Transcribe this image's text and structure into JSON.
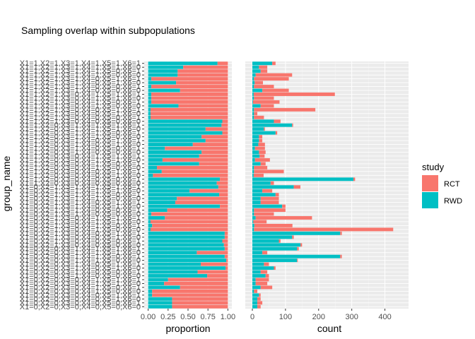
{
  "chart_data": {
    "type": "bar",
    "title": "Sampling overlap within subpopulations",
    "ylabel": "group_name",
    "legend": {
      "title": "study",
      "placement": "right",
      "entries": [
        {
          "name": "RCT",
          "color": "#F8766D"
        },
        {
          "name": "RWD",
          "color": "#00BFC4"
        }
      ]
    },
    "categories": [
      "X1=1,X2=1,X3=1,X4=1,X5=1,X6=1",
      "X1=1,X2=1,X3=1,X4=1,X5=1,X6=0",
      "X1=1,X2=1,X3=1,X4=1,X5=0,X6=1",
      "X1=1,X2=1,X3=1,X4=1,X5=0,X6=0",
      "X1=1,X2=1,X3=1,X4=0,X5=1,X6=1",
      "X1=1,X2=1,X3=1,X4=0,X5=1,X6=0",
      "X1=1,X2=1,X3=1,X4=0,X5=0,X6=1",
      "X1=1,X2=1,X3=1,X4=0,X5=0,X6=0",
      "X1=1,X2=1,X3=0,X4=1,X5=1,X6=1",
      "X1=1,X2=1,X3=0,X4=1,X5=1,X6=0",
      "X1=1,X2=1,X3=0,X4=1,X5=0,X6=1",
      "X1=1,X2=1,X3=0,X4=1,X5=0,X6=0",
      "X1=1,X2=1,X3=0,X4=0,X5=1,X6=1",
      "X1=1,X2=1,X3=0,X4=0,X5=1,X6=0",
      "X1=1,X2=1,X3=0,X4=0,X5=0,X6=1",
      "X1=1,X2=1,X3=0,X4=0,X5=0,X6=0",
      "X1=1,X2=0,X3=1,X4=1,X5=1,X6=1",
      "X1=1,X2=0,X3=1,X4=1,X5=1,X6=0",
      "X1=1,X2=0,X3=1,X4=1,X5=0,X6=1",
      "X1=1,X2=0,X3=1,X4=1,X5=0,X6=0",
      "X1=1,X2=0,X3=1,X4=0,X5=1,X6=1",
      "X1=1,X2=0,X3=1,X4=0,X5=1,X6=0",
      "X1=1,X2=0,X3=1,X4=0,X5=0,X6=1",
      "X1=1,X2=0,X3=1,X4=0,X5=0,X6=0",
      "X1=1,X2=0,X3=0,X4=1,X5=1,X6=1",
      "X1=1,X2=0,X3=0,X4=1,X5=1,X6=0",
      "X1=1,X2=0,X3=0,X4=1,X5=0,X6=1",
      "X1=1,X2=0,X3=0,X4=1,X5=0,X6=0",
      "X1=1,X2=0,X3=0,X4=0,X5=1,X6=1",
      "X1=1,X2=0,X3=0,X4=0,X5=1,X6=0",
      "X1=1,X2=0,X3=0,X4=0,X5=0,X6=1",
      "X1=1,X2=0,X3=0,X4=0,X5=0,X6=0",
      "X1=0,X2=1,X3=1,X4=1,X5=1,X6=1",
      "X1=0,X2=1,X3=1,X4=1,X5=1,X6=0",
      "X1=0,X2=1,X3=1,X4=1,X5=0,X6=1",
      "X1=0,X2=1,X3=1,X4=1,X5=0,X6=0",
      "X1=0,X2=1,X3=1,X4=0,X5=1,X6=1",
      "X1=0,X2=1,X3=1,X4=0,X5=1,X6=0",
      "X1=0,X2=1,X3=1,X4=0,X5=0,X6=1",
      "X1=0,X2=1,X3=1,X4=0,X5=0,X6=0",
      "X1=0,X2=1,X3=0,X4=1,X5=1,X6=1",
      "X1=0,X2=1,X3=0,X4=1,X5=1,X6=0",
      "X1=0,X2=1,X3=0,X4=1,X5=0,X6=1",
      "X1=0,X2=1,X3=0,X4=1,X5=0,X6=0",
      "X1=0,X2=1,X3=0,X4=0,X5=1,X6=1",
      "X1=0,X2=1,X3=0,X4=0,X5=1,X6=0",
      "X1=0,X2=1,X3=0,X4=0,X5=0,X6=1",
      "X1=0,X2=1,X3=0,X4=0,X5=0,X6=0",
      "X1=0,X2=0,X3=1,X4=1,X5=1,X6=1",
      "X1=0,X2=0,X3=1,X4=1,X5=1,X6=0",
      "X1=0,X2=0,X3=1,X4=1,X5=0,X6=1",
      "X1=0,X2=0,X3=1,X4=1,X5=0,X6=0",
      "X1=0,X2=0,X3=1,X4=0,X5=1,X6=1",
      "X1=0,X2=0,X3=1,X4=0,X5=1,X6=0",
      "X1=0,X2=0,X3=1,X4=0,X5=0,X6=1",
      "X1=0,X2=0,X3=1,X4=0,X5=0,X6=0",
      "X1=0,X2=0,X3=0,X4=1,X5=1,X6=1",
      "X1=0,X2=0,X3=0,X4=1,X5=1,X6=0",
      "X1=0,X2=0,X3=0,X4=1,X5=0,X6=1",
      "X1=0,X2=0,X3=0,X4=1,X5=0,X6=0",
      "X1=0,X2=0,X3=0,X4=0,X5=1,X6=1",
      "X1=0,X2=0,X3=0,X4=0,X5=1,X6=0",
      "X1=0,X2=0,X3=0,X4=0,X5=0,X6=1",
      "X1=0,X2=0,X3=0,X4=0,X5=0,X6=0"
    ],
    "panels": [
      {
        "xlabel": "proportion",
        "xlim": [
          0,
          1.0
        ],
        "xticks": [
          "0.00",
          "0.25",
          "0.50",
          "0.75",
          "1.00"
        ],
        "xtick_values": [
          0,
          0.25,
          0.5,
          0.75,
          1.0
        ],
        "stacked": "fill",
        "series": [
          {
            "name": "RWD",
            "values": [
              0.87,
              0.44,
              0.37,
              0.37,
              0.04,
              0.35,
              0.04,
              0.4,
              0.04,
              0.04,
              0.04,
              0.38,
              0.03,
              0.03,
              0.03,
              0.93,
              0.92,
              0.72,
              0.93,
              0.67,
              0.72,
              0.56,
              0.21,
              0.67,
              0.64,
              0.18,
              0.64,
              0.11,
              0.17,
              0.06,
              0.9,
              0.86,
              0.88,
              0.52,
              0.89,
              0.36,
              0.34,
              0.9,
              0.24,
              0.04,
              0.21,
              0.03,
              0.05,
              0.03,
              0.96,
              0.96,
              0.93,
              0.95,
              0.96,
              0.61,
              0.96,
              0.98,
              0.66,
              0.97,
              0.62,
              0.74,
              0.25,
              0.2,
              0.4,
              0.05,
              0.05,
              0.3,
              0.3,
              0.3
            ]
          },
          {
            "name": "RCT",
            "values": [
              0.13,
              0.56,
              0.63,
              0.63,
              0.96,
              0.65,
              0.96,
              0.6,
              0.96,
              0.96,
              0.96,
              0.62,
              0.97,
              0.97,
              0.97,
              0.07,
              0.08,
              0.28,
              0.07,
              0.33,
              0.28,
              0.44,
              0.79,
              0.33,
              0.36,
              0.82,
              0.36,
              0.89,
              0.83,
              0.94,
              0.1,
              0.14,
              0.12,
              0.48,
              0.11,
              0.64,
              0.66,
              0.1,
              0.76,
              0.96,
              0.79,
              0.97,
              0.95,
              0.97,
              0.04,
              0.04,
              0.07,
              0.05,
              0.04,
              0.39,
              0.04,
              0.02,
              0.34,
              0.03,
              0.38,
              0.26,
              0.75,
              0.8,
              0.6,
              0.95,
              0.95,
              0.7,
              0.7,
              0.7
            ]
          }
        ]
      },
      {
        "xlabel": "count",
        "xlim": [
          0,
          450
        ],
        "xticks": [
          "0",
          "100",
          "200",
          "300",
          "400"
        ],
        "xtick_values": [
          0,
          100,
          200,
          300,
          400
        ],
        "stacked": "stack",
        "series": [
          {
            "name": "RWD",
            "values": [
              60,
              20,
              25,
              10,
              5,
              7,
              5,
              30,
              4,
              5,
              2,
              25,
              5,
              5,
              5,
              65,
              120,
              35,
              70,
              20,
              20,
              18,
              8,
              20,
              22,
              8,
              25,
              5,
              5,
              4,
              305,
              55,
              125,
              30,
              70,
              25,
              25,
              90,
              5,
              5,
              10,
              3,
              6,
              5,
              265,
              120,
              80,
              145,
              135,
              30,
              265,
              135,
              35,
              65,
              25,
              40,
              10,
              10,
              25,
              5,
              20,
              15,
              15,
              15
            ]
          },
          {
            "name": "RCT",
            "values": [
              10,
              25,
              20,
              110,
              105,
              25,
              60,
              80,
              245,
              60,
              80,
              40,
              185,
              10,
              30,
              20,
              3,
              3,
              5,
              10,
              10,
              20,
              30,
              20,
              15,
              45,
              15,
              40,
              90,
              30,
              5,
              10,
              20,
              30,
              10,
              55,
              55,
              10,
              95,
              60,
              170,
              40,
              115,
              420,
              5,
              5,
              5,
              5,
              5,
              15,
              5,
              2,
              15,
              5,
              20,
              10,
              40,
              35,
              35,
              10,
              5,
              10,
              15,
              10
            ]
          }
        ]
      }
    ]
  }
}
